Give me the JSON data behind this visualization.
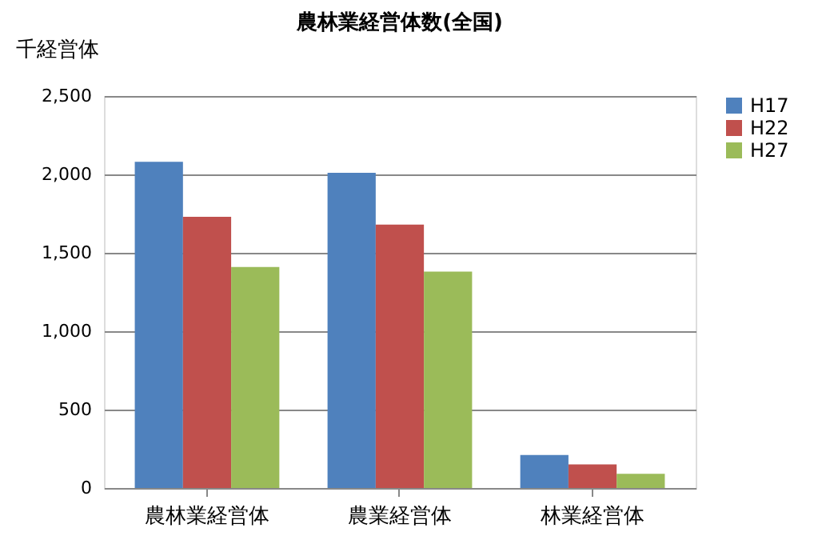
{
  "chart_data": {
    "type": "bar",
    "title": "農林業経営体数(全国)",
    "ylabel": "千経営体",
    "categories": [
      "農林業経営体",
      "農業経営体",
      "林業経営体"
    ],
    "series": [
      {
        "name": "H17",
        "color": "#4f81bd",
        "values": [
          2080,
          2010,
          210
        ]
      },
      {
        "name": "H22",
        "color": "#c0504d",
        "values": [
          1730,
          1680,
          150
        ]
      },
      {
        "name": "H27",
        "color": "#9bbb59",
        "values": [
          1410,
          1380,
          90
        ]
      }
    ],
    "ylim": [
      0,
      2500
    ],
    "yticks": [
      0,
      {
        "value": 500,
        "label": "500"
      },
      {
        "value": 1000,
        "label": "1,000"
      },
      {
        "value": 1500,
        "label": "1,500"
      },
      {
        "value": 2000,
        "label": "2,000"
      },
      {
        "value": 2500,
        "label": "2,500"
      }
    ],
    "grid": "y",
    "legend": "right"
  }
}
